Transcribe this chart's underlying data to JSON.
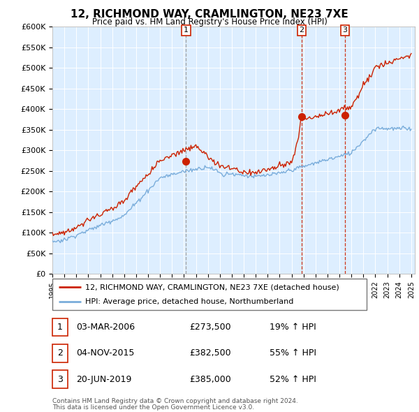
{
  "title": "12, RICHMOND WAY, CRAMLINGTON, NE23 7XE",
  "subtitle": "Price paid vs. HM Land Registry's House Price Index (HPI)",
  "ylim": [
    0,
    600000
  ],
  "yticks": [
    0,
    50000,
    100000,
    150000,
    200000,
    250000,
    300000,
    350000,
    400000,
    450000,
    500000,
    550000,
    600000
  ],
  "legend_line1": "12, RICHMOND WAY, CRAMLINGTON, NE23 7XE (detached house)",
  "legend_line2": "HPI: Average price, detached house, Northumberland",
  "sale1": {
    "label": "1",
    "date": "03-MAR-2006",
    "price": "£273,500",
    "hpi": "19% ↑ HPI",
    "year": 2006.17
  },
  "sale2": {
    "label": "2",
    "date": "04-NOV-2015",
    "price": "£382,500",
    "hpi": "55% ↑ HPI",
    "year": 2015.84
  },
  "sale3": {
    "label": "3",
    "date": "20-JUN-2019",
    "price": "£385,000",
    "hpi": "52% ↑ HPI",
    "year": 2019.47
  },
  "footer1": "Contains HM Land Registry data © Crown copyright and database right 2024.",
  "footer2": "This data is licensed under the Open Government Licence v3.0.",
  "hpi_color": "#7aaddb",
  "sale_color": "#cc2200",
  "bg_color": "#ddeeff",
  "vline1_color": "#aaaaaa",
  "vline23_color": "#cc2200"
}
